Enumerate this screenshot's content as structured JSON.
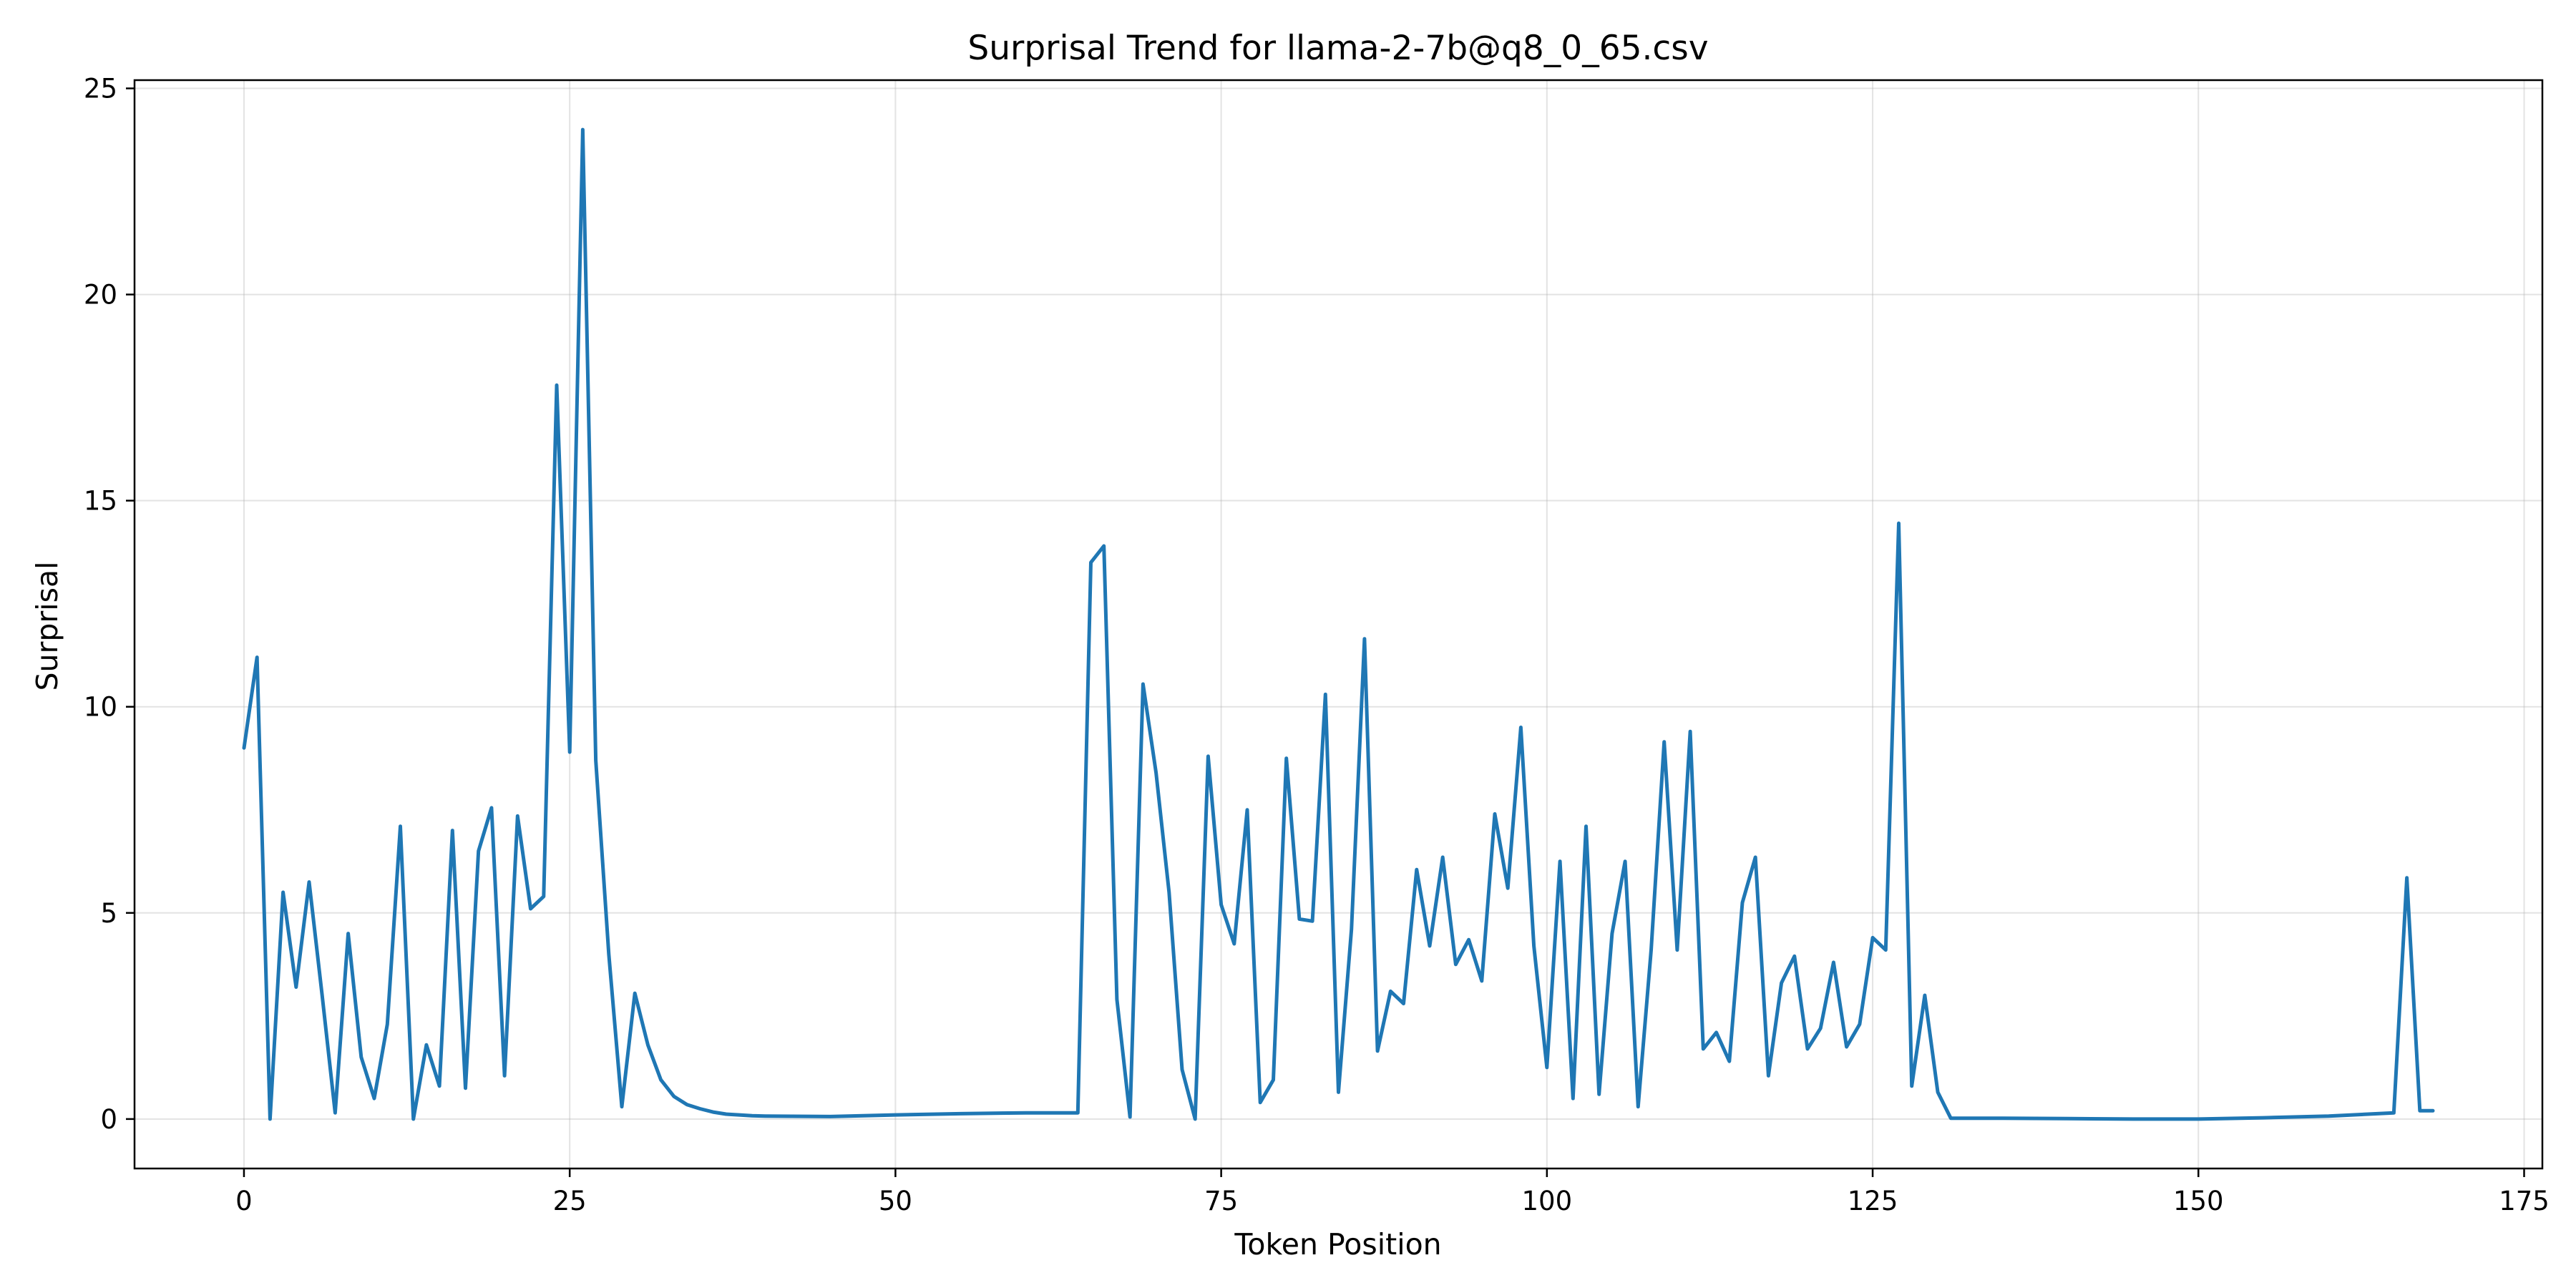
{
  "chart_data": {
    "type": "line",
    "title": "Surprisal Trend for llama-2-7b@q8_0_65.csv",
    "xlabel": "Token Position",
    "ylabel": "Surprisal",
    "xlim": [
      -8.4,
      176.4
    ],
    "ylim": [
      -1.2,
      25.2
    ],
    "xticks": [
      0,
      25,
      50,
      75,
      100,
      125,
      150,
      175
    ],
    "yticks": [
      0,
      5,
      10,
      15,
      20,
      25
    ],
    "grid": true,
    "legend": "none",
    "series": [
      {
        "color": "#1f77b4",
        "x": [
          0,
          1,
          2,
          3,
          4,
          5,
          6,
          7,
          8,
          9,
          10,
          11,
          12,
          13,
          14,
          15,
          16,
          17,
          18,
          19,
          20,
          21,
          22,
          23,
          24,
          25,
          26,
          27,
          28,
          29,
          30,
          31,
          32,
          33,
          34,
          35,
          36,
          37,
          38,
          39,
          40,
          45,
          50,
          55,
          60,
          64,
          65,
          66,
          67,
          68,
          69,
          70,
          71,
          72,
          73,
          74,
          75,
          76,
          77,
          78,
          79,
          80,
          81,
          82,
          83,
          84,
          85,
          86,
          87,
          88,
          89,
          90,
          91,
          92,
          93,
          94,
          95,
          96,
          97,
          98,
          99,
          100,
          101,
          102,
          103,
          104,
          105,
          106,
          107,
          108,
          109,
          110,
          111,
          112,
          113,
          114,
          115,
          116,
          117,
          118,
          119,
          120,
          121,
          122,
          123,
          124,
          125,
          126,
          127,
          128,
          129,
          130,
          131,
          135,
          140,
          145,
          150,
          155,
          160,
          165,
          166,
          167,
          168
        ],
        "y": [
          9.0,
          11.2,
          0.0,
          5.5,
          3.2,
          5.75,
          3.0,
          0.15,
          4.5,
          1.5,
          0.5,
          2.3,
          7.1,
          0.0,
          1.8,
          0.8,
          7.0,
          0.75,
          6.5,
          7.55,
          1.05,
          7.35,
          5.1,
          5.4,
          17.8,
          8.9,
          24.0,
          8.7,
          4.0,
          0.3,
          3.05,
          1.8,
          0.95,
          0.55,
          0.35,
          0.25,
          0.17,
          0.12,
          0.1,
          0.08,
          0.07,
          0.06,
          0.1,
          0.13,
          0.15,
          0.15,
          13.5,
          13.9,
          2.9,
          0.05,
          10.55,
          8.4,
          5.5,
          1.2,
          0.0,
          8.8,
          5.2,
          4.25,
          7.5,
          0.4,
          0.95,
          8.75,
          4.85,
          4.8,
          10.3,
          0.65,
          4.6,
          11.65,
          1.65,
          3.1,
          2.8,
          6.05,
          4.2,
          6.35,
          3.75,
          4.35,
          3.35,
          7.4,
          5.6,
          9.5,
          4.2,
          1.25,
          6.25,
          0.5,
          7.1,
          0.6,
          4.5,
          6.25,
          0.3,
          4.1,
          9.15,
          4.1,
          9.4,
          1.7,
          2.1,
          1.4,
          5.25,
          6.35,
          1.05,
          3.3,
          3.95,
          1.7,
          2.2,
          3.8,
          1.75,
          2.3,
          4.4,
          4.1,
          14.45,
          0.8,
          3.0,
          0.65,
          0.02,
          0.02,
          0.01,
          0.0,
          0.0,
          0.03,
          0.07,
          0.15,
          5.85,
          0.2,
          0.2
        ]
      }
    ]
  }
}
